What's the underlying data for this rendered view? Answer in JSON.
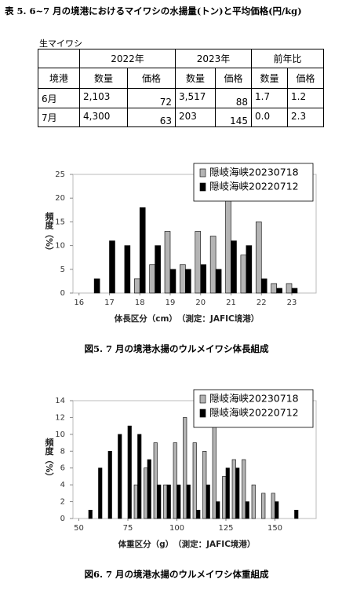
{
  "header": {
    "title": "表 5. 6~7 月の境港におけるマイワシの水揚量(トン)と平均価格(円/kg)"
  },
  "table": {
    "label": "生マイワシ",
    "groups": [
      "2022年",
      "2023年",
      "前年比"
    ],
    "row_header": "境港",
    "subheaders": [
      "数量",
      "価格",
      "数量",
      "価格",
      "数量",
      "価格"
    ],
    "rows": [
      [
        "6月",
        "2,103",
        "72",
        "3,517",
        "88",
        "1.7",
        "1.2"
      ],
      [
        "7月",
        "4,300",
        "63",
        "203",
        "145",
        "0.0",
        "2.3"
      ]
    ]
  },
  "chart_data": [
    {
      "type": "bar",
      "x_label": "体長区分（cm）　（測定：JAFIC境港）",
      "y_label": "頻度（%）",
      "caption": "図5.  7 月の境港水揚のウルメイワシ体長組成",
      "x": [
        16.5,
        17.0,
        17.5,
        18.0,
        18.5,
        19.0,
        19.5,
        20.0,
        20.5,
        21.0,
        21.5,
        22.0,
        22.5,
        23.0
      ],
      "series": [
        {
          "name": "隠岐海峡20230718",
          "color": "#b4b4b4",
          "values": [
            0,
            0,
            0,
            3,
            6,
            13,
            6,
            13,
            12,
            20,
            8,
            15,
            2,
            2
          ]
        },
        {
          "name": "隠岐海峡20220712",
          "color": "#000000",
          "values": [
            3,
            11,
            10,
            18,
            10,
            5,
            5,
            6,
            5,
            11,
            10,
            3,
            1,
            1
          ]
        }
      ],
      "xlim": [
        15.8,
        23.8
      ],
      "xticks": [
        16,
        17,
        18,
        19,
        20,
        21,
        22,
        23
      ],
      "ylim": [
        0,
        25
      ],
      "yticks": [
        0,
        5,
        10,
        15,
        20,
        25
      ],
      "legend": "upper right",
      "grid": false
    },
    {
      "type": "bar",
      "x_label": "体重区分（g）　（測定：JAFIC境港）",
      "y_label": "頻度（%）",
      "caption": "図6.  7 月の境港水揚のウルメイワシ体重組成",
      "x": [
        55,
        60,
        65,
        70,
        75,
        80,
        85,
        90,
        95,
        100,
        105,
        110,
        115,
        120,
        125,
        130,
        135,
        140,
        145,
        150,
        155,
        160
      ],
      "series": [
        {
          "name": "隠岐海峡20230718",
          "color": "#b4b4b4",
          "values": [
            0,
            0,
            0,
            0,
            0,
            4,
            6,
            9,
            4,
            9,
            12,
            9,
            8,
            12,
            5,
            7,
            7,
            4,
            3,
            3,
            0,
            0
          ]
        },
        {
          "name": "隠岐海峡20220712",
          "color": "#000000",
          "values": [
            1,
            6,
            8,
            10,
            11,
            10,
            7,
            4,
            4,
            4,
            4,
            1,
            4,
            2,
            6,
            6,
            2,
            0,
            0,
            2,
            0,
            1
          ]
        }
      ],
      "xlim": [
        47,
        171
      ],
      "xticks": [
        50,
        75,
        100,
        125,
        150
      ],
      "ylim": [
        0,
        14
      ],
      "yticks": [
        0,
        2,
        4,
        6,
        8,
        10,
        12,
        14
      ],
      "legend": "upper right",
      "grid": false
    }
  ]
}
